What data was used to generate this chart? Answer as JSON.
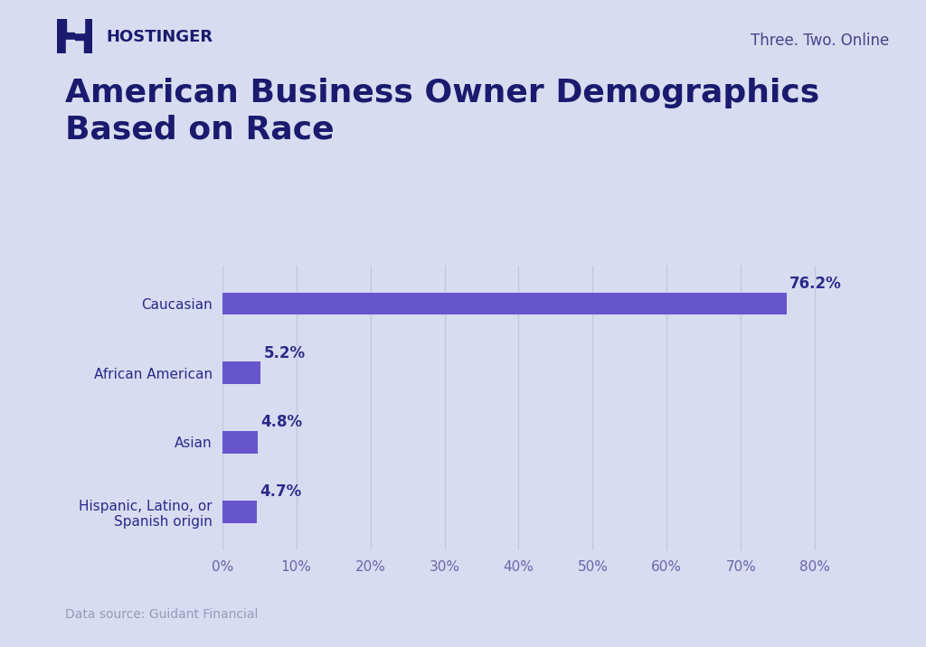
{
  "title": "American Business Owner Demographics\nBased on Race",
  "categories": [
    "Caucasian",
    "African American",
    "Asian",
    "Hispanic, Latino, or\nSpanish origin"
  ],
  "values": [
    76.2,
    5.2,
    4.8,
    4.7
  ],
  "labels": [
    "76.2%",
    "5.2%",
    "4.8%",
    "4.7%"
  ],
  "bar_color": "#6655cc",
  "background_color": "#d8dcf0",
  "title_color": "#1a1a6e",
  "label_color": "#2a2a8a",
  "tick_label_color": "#6666aa",
  "axis_label_color": "#9999bb",
  "source_text": "Data source: Guidant Financial",
  "brand_text": "Three. Two. Online",
  "brand_color": "#444488",
  "xlim": [
    0,
    85
  ],
  "xticks": [
    0,
    10,
    20,
    30,
    40,
    50,
    60,
    70,
    80
  ],
  "title_fontsize": 26,
  "label_fontsize": 12,
  "tick_fontsize": 11,
  "source_fontsize": 10,
  "brand_fontsize": 12,
  "ytick_fontsize": 11,
  "bar_height": 0.32,
  "grid_color": "#c0c4dc",
  "grid_alpha": 0.9
}
